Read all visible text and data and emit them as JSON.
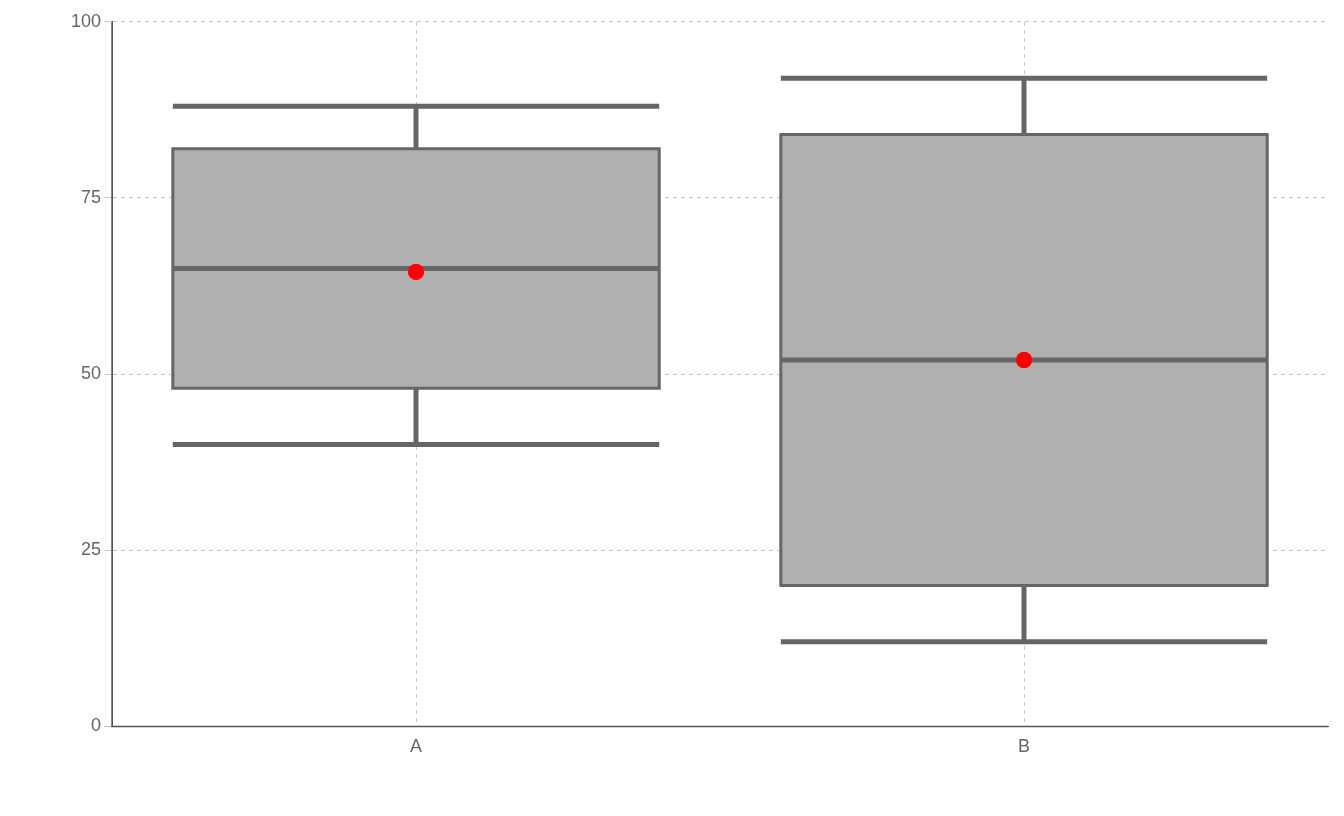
{
  "chart_data": {
    "type": "box",
    "categories": [
      "A",
      "B"
    ],
    "color": "#b0b0b0",
    "boxes": [
      {
        "low": 40,
        "q1": 48,
        "median": 65,
        "q3": 82,
        "high": 88,
        "mean": 64.5
      },
      {
        "low": 12,
        "q1": 20,
        "median": 52,
        "q3": 84,
        "high": 92,
        "mean": 52
      }
    ],
    "ylim": [
      0,
      100
    ],
    "yticks": [
      0,
      25,
      50,
      75,
      100
    ],
    "grid": true
  }
}
